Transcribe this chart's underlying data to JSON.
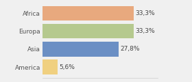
{
  "categories": [
    "Africa",
    "Europa",
    "Asia",
    "America"
  ],
  "values": [
    33.3,
    33.3,
    27.8,
    5.6
  ],
  "labels": [
    "33,3%",
    "33,3%",
    "27,8%",
    "5,6%"
  ],
  "bar_colors": [
    "#e8a97e",
    "#b5c98e",
    "#6b8fc4",
    "#f0d080"
  ],
  "background_color": "#f0f0f0",
  "xlim": [
    0,
    42
  ],
  "label_fontsize": 6.5,
  "tick_fontsize": 6.5,
  "bar_height": 0.82
}
